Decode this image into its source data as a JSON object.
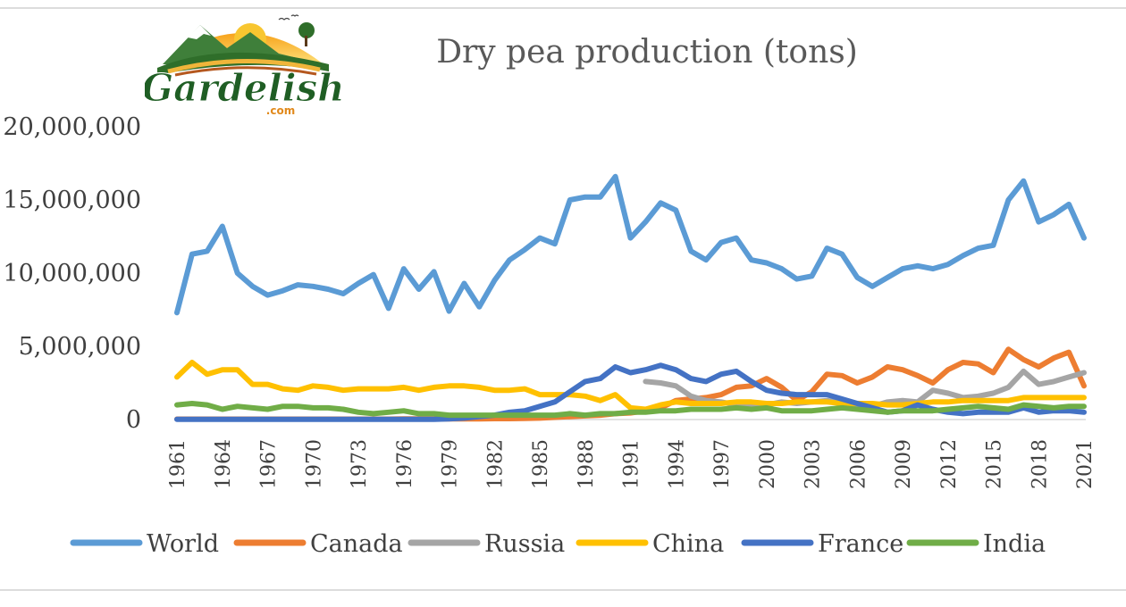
{
  "logo": {
    "wordmark": "Gardelish",
    "suffix": ".com"
  },
  "chart_data": {
    "type": "line",
    "title": "Dry pea production (tons)",
    "xlabel": "",
    "ylabel": "",
    "ylim": [
      0,
      20000000
    ],
    "yticks": [
      0,
      5000000,
      10000000,
      15000000,
      20000000
    ],
    "ytick_labels": [
      "0",
      "5,000,000",
      "10,000,000",
      "15,000,000",
      "20,000,000"
    ],
    "x": [
      1961,
      1962,
      1963,
      1964,
      1965,
      1966,
      1967,
      1968,
      1969,
      1970,
      1971,
      1972,
      1973,
      1974,
      1975,
      1976,
      1977,
      1978,
      1979,
      1980,
      1981,
      1982,
      1983,
      1984,
      1985,
      1986,
      1987,
      1988,
      1989,
      1990,
      1991,
      1992,
      1993,
      1994,
      1995,
      1996,
      1997,
      1998,
      1999,
      2000,
      2001,
      2002,
      2003,
      2004,
      2005,
      2006,
      2007,
      2008,
      2009,
      2010,
      2011,
      2012,
      2013,
      2014,
      2015,
      2016,
      2017,
      2018,
      2019,
      2020,
      2021
    ],
    "xtick_labels": [
      "1961",
      "1964",
      "1967",
      "1970",
      "1973",
      "1976",
      "1979",
      "1982",
      "1985",
      "1988",
      "1991",
      "1994",
      "1997",
      "2000",
      "2003",
      "2006",
      "2009",
      "2012",
      "2015",
      "2018",
      "2021"
    ],
    "grid": false,
    "legend_position": "bottom",
    "series": [
      {
        "name": "World",
        "color": "#5B9BD5",
        "values": [
          7300000,
          11300000,
          11500000,
          13200000,
          10000000,
          9100000,
          8500000,
          8800000,
          9200000,
          9100000,
          8900000,
          8600000,
          9300000,
          9900000,
          7600000,
          10300000,
          8900000,
          10100000,
          7400000,
          9300000,
          7700000,
          9500000,
          10900000,
          11600000,
          12400000,
          12000000,
          15000000,
          15200000,
          15200000,
          16600000,
          12400000,
          13500000,
          14800000,
          14300000,
          11500000,
          10900000,
          12100000,
          12400000,
          10900000,
          10700000,
          10300000,
          9600000,
          9800000,
          11700000,
          11300000,
          9700000,
          9100000,
          9700000,
          10300000,
          10500000,
          10300000,
          10600000,
          11200000,
          11700000,
          11900000,
          15000000,
          16300000,
          13500000,
          14000000,
          14700000,
          12400000
        ]
      },
      {
        "name": "Canada",
        "color": "#ED7D31",
        "values": [
          30000,
          30000,
          30000,
          30000,
          30000,
          30000,
          30000,
          30000,
          30000,
          30000,
          30000,
          30000,
          30000,
          30000,
          30000,
          50000,
          50000,
          50000,
          50000,
          50000,
          50000,
          60000,
          60000,
          80000,
          100000,
          150000,
          200000,
          250000,
          300000,
          400000,
          450000,
          600000,
          800000,
          1300000,
          1400000,
          1500000,
          1700000,
          2200000,
          2300000,
          2800000,
          2200000,
          1300000,
          1900000,
          3100000,
          3000000,
          2500000,
          2900000,
          3600000,
          3400000,
          3000000,
          2500000,
          3400000,
          3900000,
          3800000,
          3200000,
          4800000,
          4100000,
          3600000,
          4200000,
          4600000,
          2300000
        ]
      },
      {
        "name": "Russia",
        "color": "#A5A5A5",
        "values": [
          null,
          null,
          null,
          null,
          null,
          null,
          null,
          null,
          null,
          null,
          null,
          null,
          null,
          null,
          null,
          null,
          null,
          null,
          null,
          null,
          null,
          null,
          null,
          null,
          null,
          null,
          null,
          null,
          null,
          null,
          null,
          2600000,
          2500000,
          2300000,
          1600000,
          1300000,
          1200000,
          1000000,
          900000,
          1000000,
          1200000,
          1100000,
          1200000,
          1300000,
          1100000,
          1000000,
          900000,
          1200000,
          1300000,
          1200000,
          2000000,
          1800000,
          1500000,
          1600000,
          1800000,
          2200000,
          3300000,
          2400000,
          2600000,
          2900000,
          3200000
        ]
      },
      {
        "name": "China",
        "color": "#FFC000",
        "values": [
          2900000,
          3900000,
          3100000,
          3400000,
          3400000,
          2400000,
          2400000,
          2100000,
          2000000,
          2300000,
          2200000,
          2000000,
          2100000,
          2100000,
          2100000,
          2200000,
          2000000,
          2200000,
          2300000,
          2300000,
          2200000,
          2000000,
          2000000,
          2100000,
          1700000,
          1700000,
          1700000,
          1600000,
          1300000,
          1700000,
          800000,
          700000,
          1000000,
          1200000,
          1100000,
          1100000,
          1100000,
          1200000,
          1200000,
          1100000,
          1100000,
          1200000,
          1200000,
          1200000,
          1100000,
          1100000,
          1100000,
          1000000,
          1000000,
          1100000,
          1200000,
          1200000,
          1300000,
          1300000,
          1300000,
          1300000,
          1500000,
          1500000,
          1500000,
          1500000,
          1500000
        ]
      },
      {
        "name": "France",
        "color": "#4472C4",
        "values": [
          10000,
          10000,
          10000,
          10000,
          10000,
          10000,
          10000,
          10000,
          10000,
          10000,
          10000,
          10000,
          10000,
          10000,
          10000,
          20000,
          20000,
          20000,
          50000,
          100000,
          200000,
          300000,
          500000,
          600000,
          900000,
          1200000,
          1900000,
          2600000,
          2800000,
          3600000,
          3200000,
          3400000,
          3700000,
          3400000,
          2800000,
          2600000,
          3100000,
          3300000,
          2600000,
          2000000,
          1800000,
          1700000,
          1700000,
          1700000,
          1400000,
          1100000,
          800000,
          500000,
          600000,
          1000000,
          700000,
          500000,
          400000,
          500000,
          500000,
          500000,
          800000,
          500000,
          600000,
          600000,
          500000
        ]
      },
      {
        "name": "India",
        "color": "#70AD47",
        "values": [
          1000000,
          1100000,
          1000000,
          700000,
          900000,
          800000,
          700000,
          900000,
          900000,
          800000,
          800000,
          700000,
          500000,
          400000,
          500000,
          600000,
          400000,
          400000,
          300000,
          300000,
          300000,
          300000,
          300000,
          300000,
          300000,
          300000,
          400000,
          300000,
          400000,
          400000,
          500000,
          500000,
          600000,
          600000,
          700000,
          700000,
          700000,
          800000,
          700000,
          800000,
          600000,
          600000,
          600000,
          700000,
          800000,
          700000,
          600000,
          500000,
          600000,
          600000,
          600000,
          700000,
          800000,
          900000,
          800000,
          700000,
          1000000,
          900000,
          800000,
          900000,
          900000
        ]
      }
    ]
  }
}
